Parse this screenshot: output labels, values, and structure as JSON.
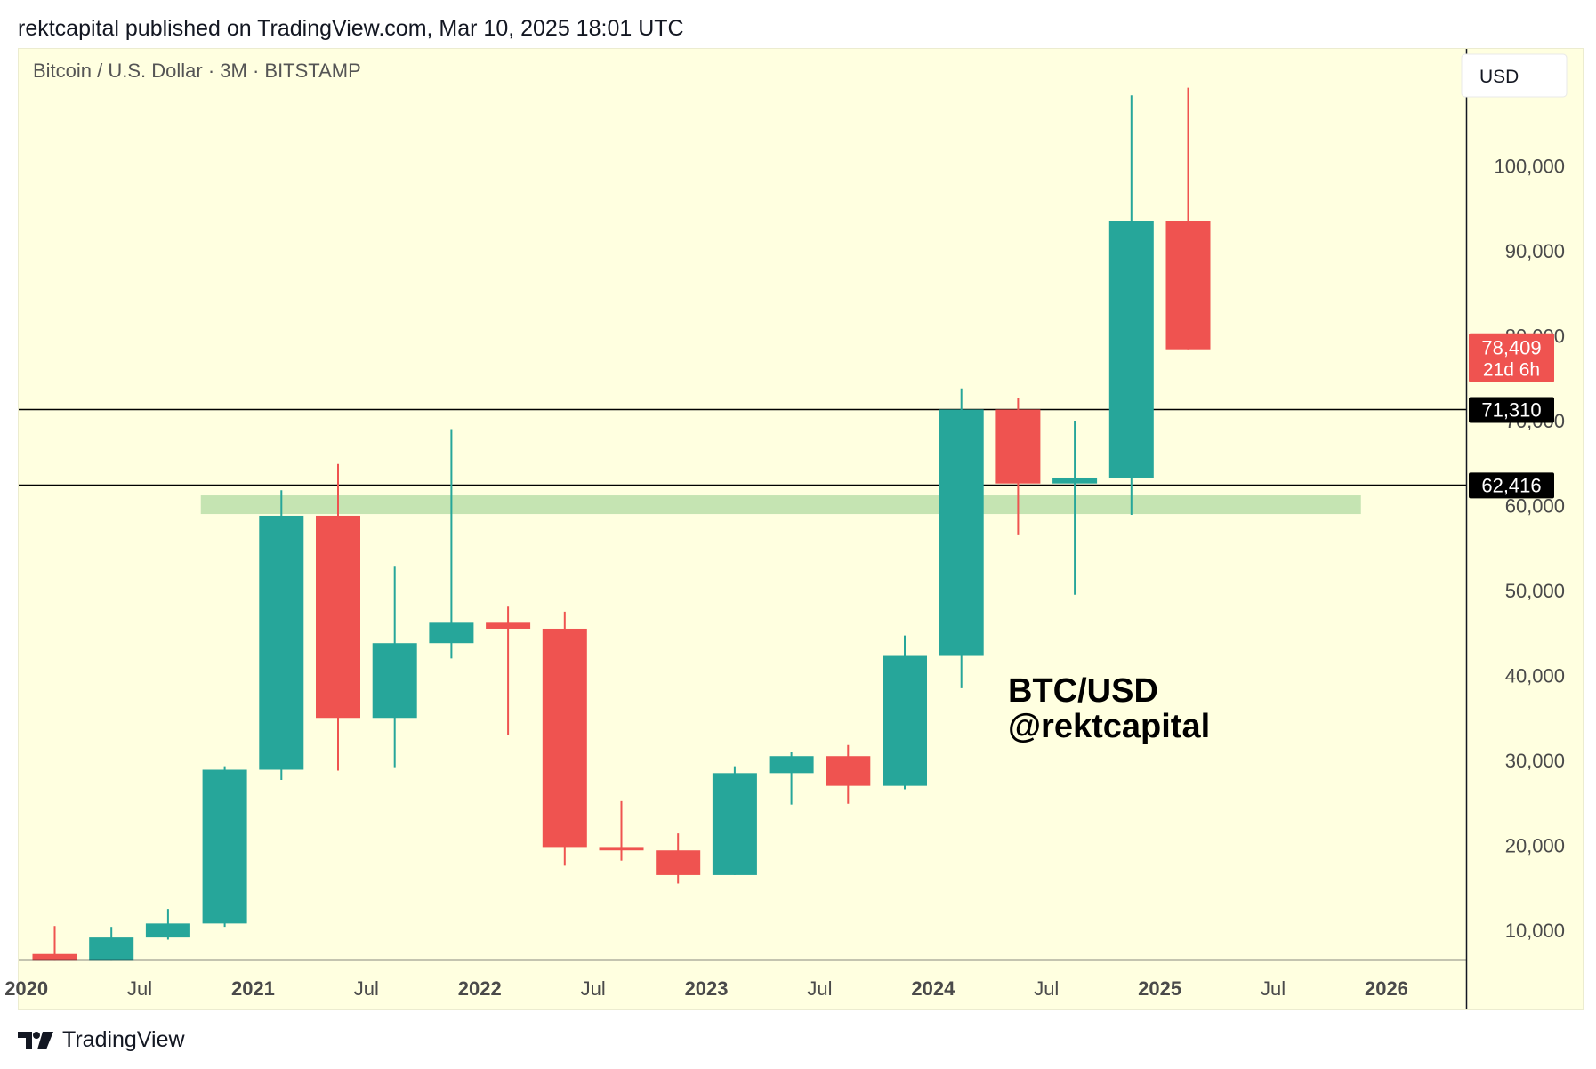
{
  "header": {
    "publish_line": "rektcapital published on TradingView.com, Mar 10, 2025 18:01 UTC"
  },
  "footer": {
    "brand": "TradingView",
    "logo_icon": "tradingview-logo-icon"
  },
  "currency_button": "USD",
  "colors": {
    "background": "#ffffe0",
    "up": "#26a69a",
    "down": "#ef5350",
    "zone": "#c5e4b2",
    "text_muted": "#555555",
    "axis_text": "#4a4a4a"
  },
  "chart_data": {
    "type": "candlestick",
    "title": "Bitcoin / U.S. Dollar · 3M · BITSTAMP",
    "symbol": "Bitcoin / U.S. Dollar",
    "interval": "3M",
    "exchange": "BITSTAMP",
    "watermark": [
      "BTC/USD",
      "@rektcapital"
    ],
    "y_axis": {
      "position": "right",
      "ticks": [
        {
          "value": 10000,
          "label": "10,000"
        },
        {
          "value": 20000,
          "label": "20,000"
        },
        {
          "value": 30000,
          "label": "30,000"
        },
        {
          "value": 40000,
          "label": "40,000"
        },
        {
          "value": 50000,
          "label": "50,000"
        },
        {
          "value": 60000,
          "label": "60,000"
        },
        {
          "value": 70000,
          "label": "70,000"
        },
        {
          "value": 80000,
          "label": "80,000"
        },
        {
          "value": 90000,
          "label": "90,000"
        },
        {
          "value": 100000,
          "label": "100,000"
        }
      ],
      "range": [
        6400,
        114000
      ]
    },
    "x_axis": {
      "ticks": [
        {
          "date": "2020-01",
          "label": "2020",
          "bold": true
        },
        {
          "date": "2020-07",
          "label": "Jul",
          "bold": false
        },
        {
          "date": "2021-01",
          "label": "2021",
          "bold": true
        },
        {
          "date": "2021-07",
          "label": "Jul",
          "bold": false
        },
        {
          "date": "2022-01",
          "label": "2022",
          "bold": true
        },
        {
          "date": "2022-07",
          "label": "Jul",
          "bold": false
        },
        {
          "date": "2023-01",
          "label": "2023",
          "bold": true
        },
        {
          "date": "2023-07",
          "label": "Jul",
          "bold": false
        },
        {
          "date": "2024-01",
          "label": "2024",
          "bold": true
        },
        {
          "date": "2024-07",
          "label": "Jul",
          "bold": false
        },
        {
          "date": "2025-01",
          "label": "2025",
          "bold": true
        },
        {
          "date": "2025-07",
          "label": "Jul",
          "bold": false
        },
        {
          "date": "2026-01",
          "label": "2026",
          "bold": true
        }
      ]
    },
    "candles": [
      {
        "date": "2020-01",
        "open": 7200,
        "high": 10500,
        "low": 6400,
        "close": 6400
      },
      {
        "date": "2020-04",
        "open": 6400,
        "high": 10400,
        "low": 6400,
        "close": 9150
      },
      {
        "date": "2020-07",
        "open": 9150,
        "high": 12500,
        "low": 8900,
        "close": 10800
      },
      {
        "date": "2020-10",
        "open": 10800,
        "high": 29300,
        "low": 10400,
        "close": 28900
      },
      {
        "date": "2021-01",
        "open": 28900,
        "high": 61800,
        "low": 27700,
        "close": 58800
      },
      {
        "date": "2021-04",
        "open": 58800,
        "high": 64900,
        "low": 28800,
        "close": 35000
      },
      {
        "date": "2021-07",
        "open": 35000,
        "high": 52900,
        "low": 29200,
        "close": 43800
      },
      {
        "date": "2021-10",
        "open": 43800,
        "high": 69000,
        "low": 42000,
        "close": 46300
      },
      {
        "date": "2022-01",
        "open": 46300,
        "high": 48200,
        "low": 32950,
        "close": 45500
      },
      {
        "date": "2022-04",
        "open": 45500,
        "high": 47500,
        "low": 17600,
        "close": 19800
      },
      {
        "date": "2022-07",
        "open": 19800,
        "high": 25200,
        "low": 18200,
        "close": 19400
      },
      {
        "date": "2022-10",
        "open": 19400,
        "high": 21400,
        "low": 15500,
        "close": 16500
      },
      {
        "date": "2023-01",
        "open": 16500,
        "high": 29300,
        "low": 16500,
        "close": 28500
      },
      {
        "date": "2023-04",
        "open": 28500,
        "high": 31000,
        "low": 24800,
        "close": 30500
      },
      {
        "date": "2023-07",
        "open": 30500,
        "high": 31800,
        "low": 24900,
        "close": 27000
      },
      {
        "date": "2023-10",
        "open": 27000,
        "high": 44700,
        "low": 26600,
        "close": 42300
      },
      {
        "date": "2024-01",
        "open": 42300,
        "high": 73800,
        "low": 38500,
        "close": 71310
      },
      {
        "date": "2024-04",
        "open": 71310,
        "high": 72700,
        "low": 56500,
        "close": 62600
      },
      {
        "date": "2024-07",
        "open": 62600,
        "high": 70000,
        "low": 49500,
        "close": 63300
      },
      {
        "date": "2024-10",
        "open": 63300,
        "high": 108300,
        "low": 58900,
        "close": 93500
      },
      {
        "date": "2025-01",
        "open": 93500,
        "high": 109200,
        "low": 78409,
        "close": 78409
      }
    ],
    "horizontal_lines": [
      {
        "value": 71310,
        "label": "71,310",
        "color": "#000000"
      },
      {
        "value": 62416,
        "label": "62,416",
        "color": "#000000"
      }
    ],
    "current_price": {
      "value": 78409,
      "label": "78,409",
      "countdown": "21d 6h",
      "color": "#ef5350"
    },
    "zone": {
      "from_date": "2020-10",
      "to_date": "2025-10",
      "low": 59000,
      "high": 61200
    }
  }
}
